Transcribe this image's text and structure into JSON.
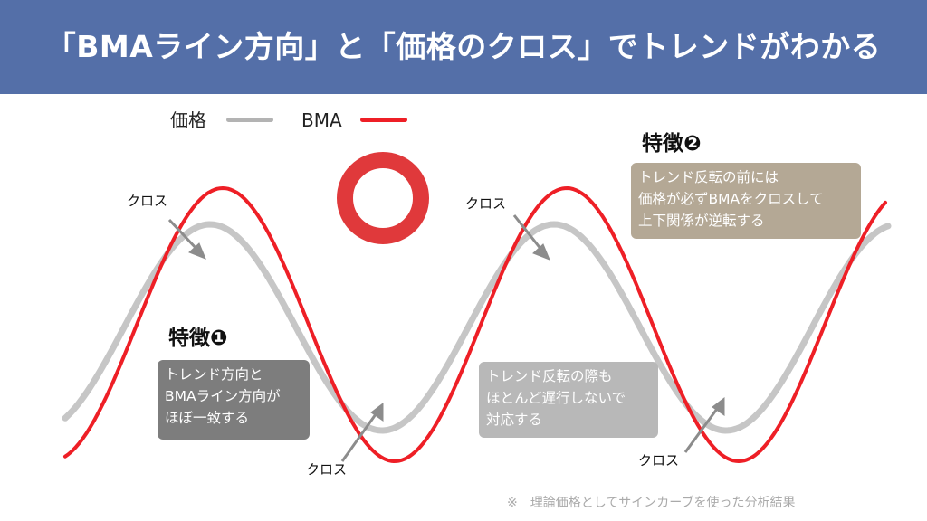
{
  "header": {
    "title": "「BMAライン方向」と「価格のクロス」でトレンドがわかる"
  },
  "legend": {
    "price_label": "価格",
    "bma_label": "BMA",
    "price_color": "#b3b3b3",
    "bma_color": "#ee1f26"
  },
  "symbol": {
    "name": "circle-mark-icon",
    "color": "#e0393b"
  },
  "feature1": {
    "title": "特徴❶",
    "lines": [
      "トレンド方向と",
      "BMAライン方向が",
      "ほぼ一致する"
    ],
    "color": "#7d7d7d"
  },
  "feature2": {
    "title": "特徴❷",
    "lines": [
      "トレンド反転の前には",
      "価格が必ずBMAをクロスして",
      "上下関係が逆転する"
    ],
    "color": "#b4a895"
  },
  "note_mid": {
    "lines": [
      "トレンド反転の際も",
      "ほとんど遅行しないで",
      "対応する"
    ],
    "color": "#b8b8b8"
  },
  "cross_label": "クロス",
  "footnote": "※　理論価格としてサインカーブを使った分析結果"
}
